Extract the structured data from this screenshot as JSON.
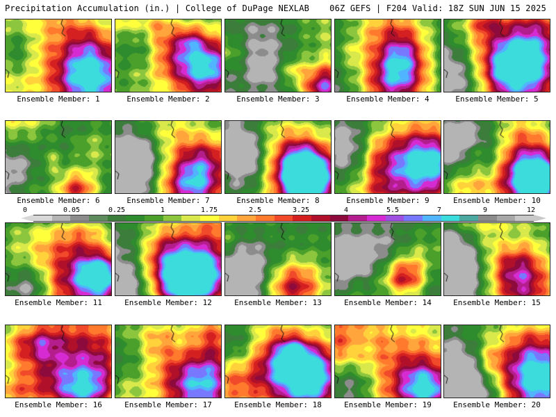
{
  "header": {
    "title": "Precipitation Accumulation (in.) | College of DuPage NEXLAB",
    "run_info": "06Z GEFS | F204 Valid: 18Z SUN JUN 15 2025"
  },
  "legend": {
    "tick_labels": [
      "0",
      "0.05",
      "0.25",
      "1",
      "1.75",
      "2.5",
      "3.25",
      "4",
      "5.5",
      "7",
      "9",
      "12"
    ],
    "colors": [
      "#d8d8d8",
      "#b4b4b4",
      "#8c8c8c",
      "#5e8c5e",
      "#3c7d3c",
      "#2e8b2e",
      "#4aa02a",
      "#8cc63f",
      "#d9e84a",
      "#ffff3c",
      "#ffd23c",
      "#ffa53c",
      "#ff7a2c",
      "#f04a2a",
      "#d42020",
      "#b0102a",
      "#8c0a3c",
      "#b41e8c",
      "#d62bd2",
      "#a050e0",
      "#7878ff",
      "#50b4ff",
      "#3cdcdc",
      "#4aa8a0",
      "#8c8c8c",
      "#a8a8a8",
      "#c8c8c8"
    ]
  },
  "panels": [
    {
      "label": "Ensemble Member: 1"
    },
    {
      "label": "Ensemble Member: 2"
    },
    {
      "label": "Ensemble Member: 3"
    },
    {
      "label": "Ensemble Member: 4"
    },
    {
      "label": "Ensemble Member: 5"
    },
    {
      "label": "Ensemble Member: 6"
    },
    {
      "label": "Ensemble Member: 7"
    },
    {
      "label": "Ensemble Member: 8"
    },
    {
      "label": "Ensemble Member: 9"
    },
    {
      "label": "Ensemble Member: 10"
    },
    {
      "label": "Ensemble Member: 11"
    },
    {
      "label": "Ensemble Member: 12"
    },
    {
      "label": "Ensemble Member: 13"
    },
    {
      "label": "Ensemble Member: 14"
    },
    {
      "label": "Ensemble Member: 15"
    },
    {
      "label": "Ensemble Member: 16"
    },
    {
      "label": "Ensemble Member: 17"
    },
    {
      "label": "Ensemble Member: 18"
    },
    {
      "label": "Ensemble Member: 19"
    },
    {
      "label": "Ensemble Member: 20"
    }
  ]
}
